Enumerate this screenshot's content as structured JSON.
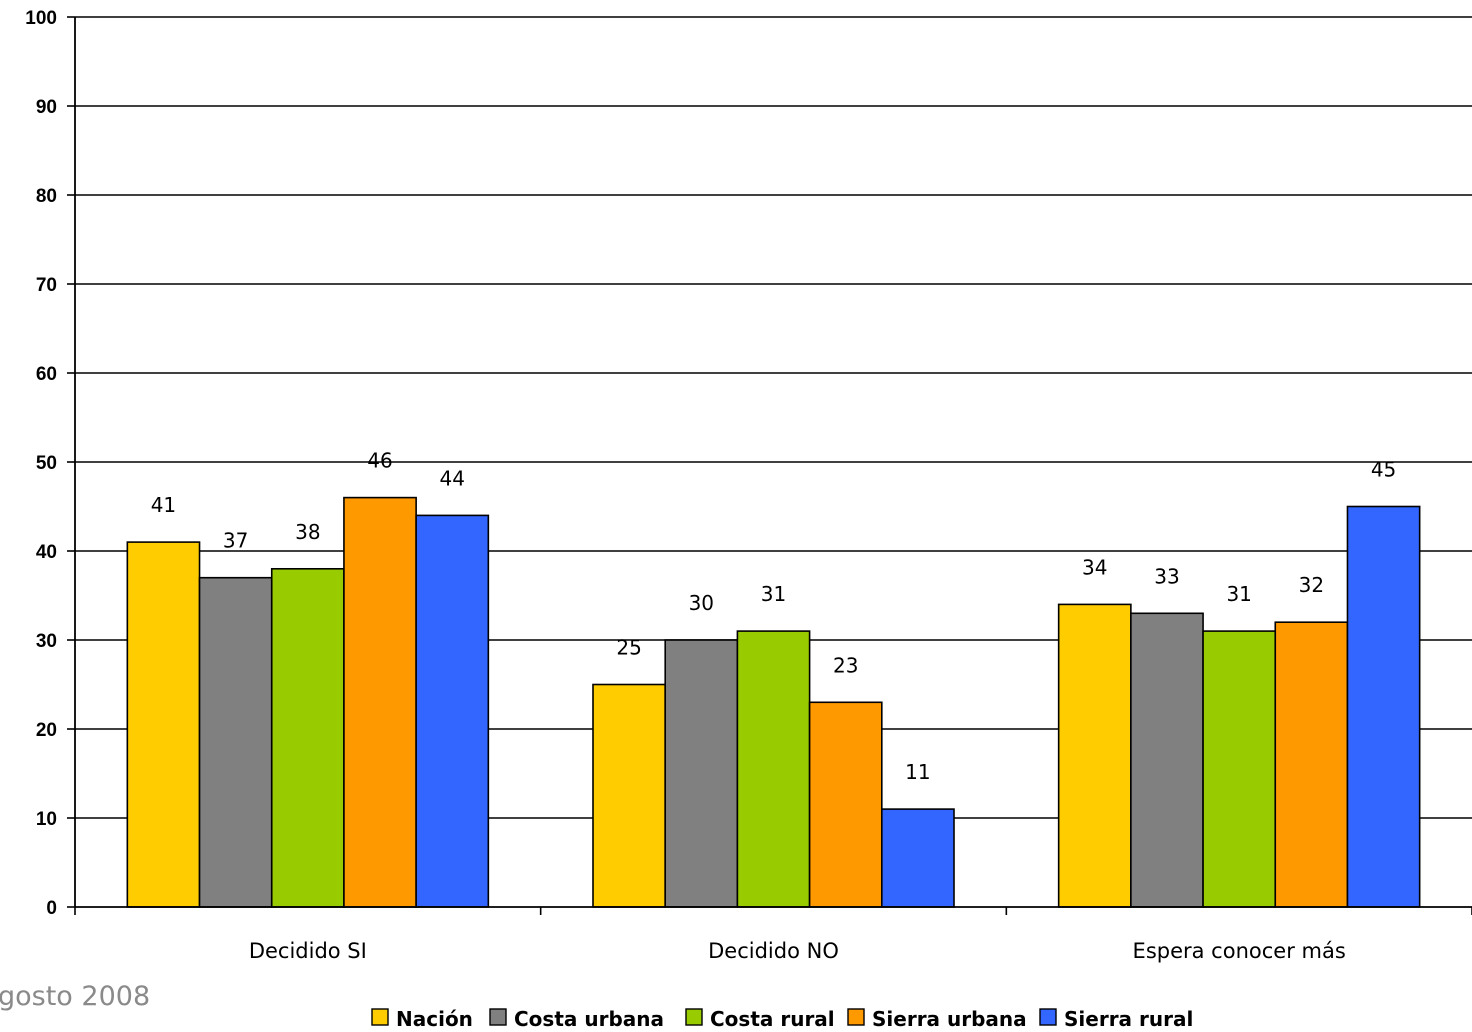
{
  "page": {
    "corner_note": "gosto 2008"
  },
  "chart_data": {
    "type": "bar",
    "title": "",
    "xlabel": "",
    "ylabel": "",
    "categories": [
      "Decidido SI",
      "Decidido NO",
      "Espera conocer más"
    ],
    "ylim": [
      0,
      100
    ],
    "yticks": [
      0,
      10,
      20,
      30,
      40,
      50,
      60,
      70,
      80,
      90,
      100
    ],
    "grid": true,
    "legend_position": "bottom",
    "series": [
      {
        "name": "Nación",
        "color": "#FFCC00",
        "values": [
          41,
          25,
          34
        ]
      },
      {
        "name": "Costa urbana",
        "color": "#808080",
        "values": [
          37,
          30,
          33
        ]
      },
      {
        "name": "Costa rural",
        "color": "#99CC00",
        "values": [
          38,
          31,
          31
        ]
      },
      {
        "name": "Sierra urbana",
        "color": "#FF9900",
        "values": [
          46,
          23,
          32
        ]
      },
      {
        "name": "Sierra rural",
        "color": "#3366FF",
        "values": [
          44,
          11,
          45
        ]
      }
    ]
  }
}
